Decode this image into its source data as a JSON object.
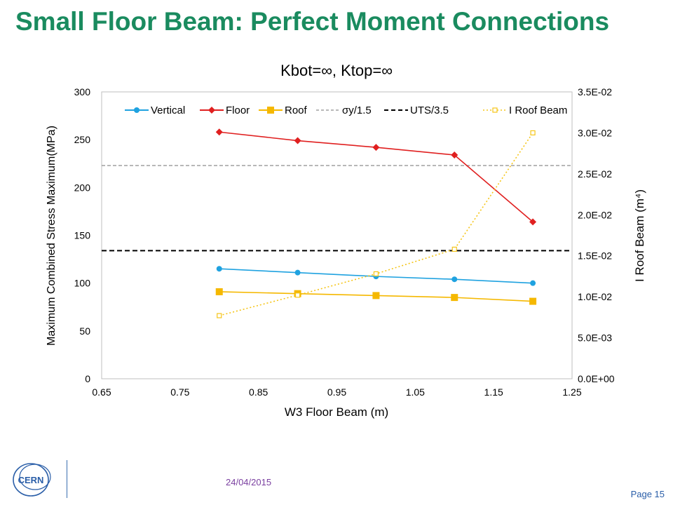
{
  "slide": {
    "title": "Small Floor Beam: Perfect Moment Connections",
    "date": "24/04/2015",
    "page": "Page 15",
    "logo_text": "CERN"
  },
  "colors": {
    "title": "#1a8b5f",
    "vertical": "#1fa2e0",
    "floor": "#e02020",
    "roof": "#f5b800",
    "sigma": "#a0a0a0",
    "uts": "#000000",
    "iroof": "#f5c518"
  },
  "chart_data": {
    "type": "line",
    "title": "Kbot=∞, Ktop=∞",
    "xlabel": "W3 Floor Beam (m)",
    "ylabel": "Maximum  Combined  Stress Maximum(MPa)",
    "y2label": "I Roof Beam (m⁴)",
    "xlim": [
      0.65,
      1.25
    ],
    "ylim": [
      0,
      300
    ],
    "y2lim": [
      0,
      0.035
    ],
    "xticks": [
      "0.65",
      "0.75",
      "0.85",
      "0.95",
      "1.05",
      "1.15",
      "1.25"
    ],
    "yticks": [
      "0",
      "50",
      "100",
      "150",
      "200",
      "250",
      "300"
    ],
    "y2ticks": [
      "0.0E+00",
      "5.0E-03",
      "1.0E-02",
      "1.5E-02",
      "2.0E-02",
      "2.5E-02",
      "3.0E-02",
      "3.5E-02"
    ],
    "legend_position": "top",
    "x": [
      0.8,
      0.9,
      1.0,
      1.1,
      1.2
    ],
    "series": [
      {
        "name": "Vertical",
        "axis": "left",
        "values": [
          115,
          111,
          107,
          104,
          100
        ]
      },
      {
        "name": "Floor",
        "axis": "left",
        "values": [
          258,
          249,
          242,
          234,
          164
        ]
      },
      {
        "name": "Roof",
        "axis": "left",
        "values": [
          91,
          89,
          87,
          85,
          81
        ]
      },
      {
        "name": "I Roof Beam",
        "axis": "right",
        "values": [
          0.0077,
          0.0102,
          0.0128,
          0.0158,
          0.03
        ]
      }
    ],
    "reference_lines": [
      {
        "name": "σy/1.5",
        "axis": "left",
        "value": 223
      },
      {
        "name": "UTS/3.5",
        "axis": "left",
        "value": 134
      }
    ]
  }
}
